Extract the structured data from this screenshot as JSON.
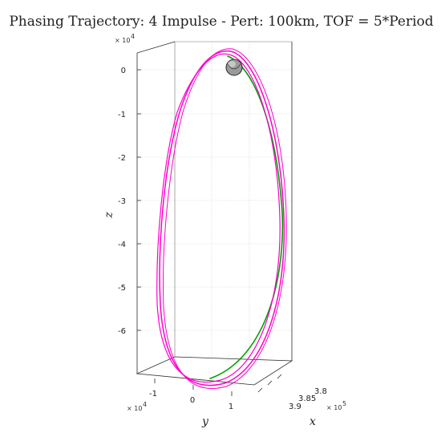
{
  "chart_data": {
    "type": "line",
    "subtype": "3d-trajectory",
    "title": "Phasing Trajectory: 4 Impulse - Pert: 100km, TOF = 5*Period",
    "xlabel": "x",
    "ylabel": "y",
    "zlabel": "z",
    "x_exponent": "× 10^5",
    "y_exponent": "× 10^4",
    "z_exponent": "× 10^4",
    "x_ticks": [
      "3.8",
      "3.85",
      "3.9"
    ],
    "y_ticks": [
      "-1",
      "0",
      "1"
    ],
    "z_ticks": [
      "0",
      "-1",
      "-2",
      "-3",
      "-4",
      "-5",
      "-6"
    ],
    "xlim": [
      3.78,
      3.92
    ],
    "ylim": [
      -1.6,
      1.6
    ],
    "zlim": [
      -7.0,
      0.4
    ],
    "grid": true,
    "series": [
      {
        "color": "#ff00cc",
        "points": 3
      },
      {
        "color": "#00a000",
        "segment": "arc from apoapsis region down the right side"
      }
    ],
    "markers": [
      {
        "type": "moon-sphere",
        "color": "#888888"
      }
    ]
  }
}
